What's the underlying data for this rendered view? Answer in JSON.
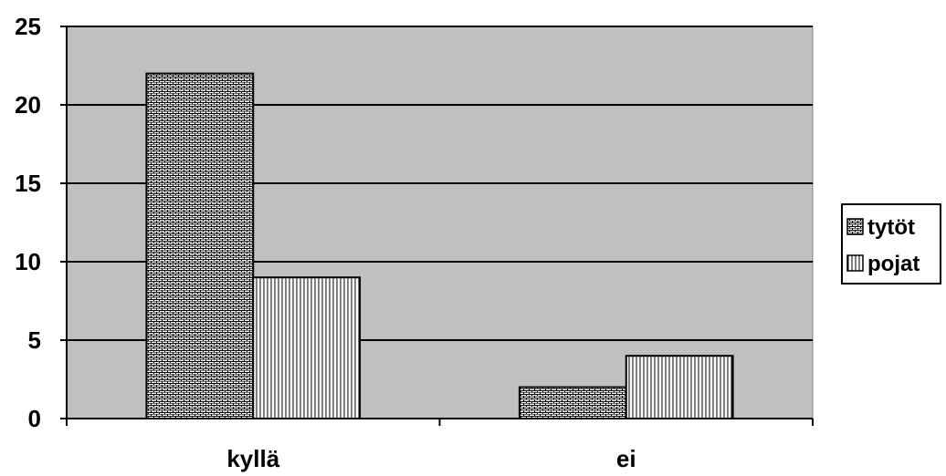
{
  "chart_data": {
    "type": "bar",
    "categories": [
      "kyllä",
      "ei"
    ],
    "series": [
      {
        "name": "tytöt",
        "values": [
          22,
          2
        ],
        "pattern": "brick"
      },
      {
        "name": "pojat",
        "values": [
          9,
          4
        ],
        "pattern": "vertical-lines"
      }
    ],
    "ylim": [
      0,
      25
    ],
    "yticks": [
      "0",
      "5",
      "10",
      "15",
      "20",
      "25"
    ],
    "title": "",
    "xlabel": "",
    "ylabel": "",
    "grid": true,
    "legend_position": "right",
    "colors": {
      "plot_background": "#c0c0c0",
      "bar_fill": "#ffffff",
      "pattern_ink": "#000000",
      "axis": "#000000"
    }
  }
}
